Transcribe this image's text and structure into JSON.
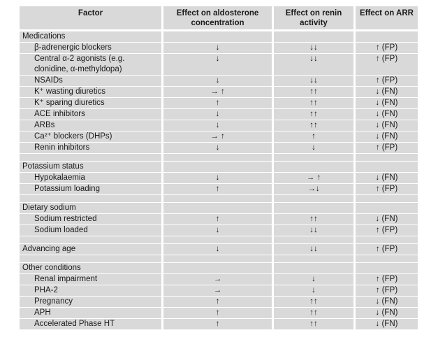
{
  "table": {
    "headers": [
      "Factor",
      "Effect on aldosterone concentration",
      "Effect on renin activity",
      "Effect on ARR"
    ],
    "rows": [
      {
        "type": "section",
        "factor": "Medications",
        "aldosterone": "",
        "renin": "",
        "arr": ""
      },
      {
        "type": "item",
        "factor": "β-adrenergic blockers",
        "aldosterone": "↓",
        "renin": "↓↓",
        "arr": "↑ (FP)"
      },
      {
        "type": "item",
        "factor": "Central α-2 agonists (e.g. clonidine, α-methyldopa)",
        "aldosterone": "↓",
        "renin": "↓↓",
        "arr": "↑ (FP)"
      },
      {
        "type": "item",
        "factor": "NSAIDs",
        "aldosterone": "↓",
        "renin": "↓↓",
        "arr": "↑ (FP)"
      },
      {
        "type": "item",
        "factor": "K⁺ wasting diuretics",
        "aldosterone": "→ ↑",
        "renin": "↑↑",
        "arr": "↓ (FN)"
      },
      {
        "type": "item",
        "factor": "K⁺ sparing diuretics",
        "aldosterone": "↑",
        "renin": "↑↑",
        "arr": "↓ (FN)"
      },
      {
        "type": "item",
        "factor": "ACE inhibitors",
        "aldosterone": "↓",
        "renin": "↑↑",
        "arr": "↓ (FN)"
      },
      {
        "type": "item",
        "factor": "ARBs",
        "aldosterone": "↓",
        "renin": "↑↑",
        "arr": "↓ (FN)"
      },
      {
        "type": "item",
        "factor": "Ca²⁺ blockers (DHPs)",
        "aldosterone": "→ ↑",
        "renin": "↑",
        "arr": "↓ (FN)"
      },
      {
        "type": "item",
        "factor": "Renin inhibitors",
        "aldosterone": "↓",
        "renin": "↓",
        "arr": "↑ (FP)"
      },
      {
        "type": "spacer"
      },
      {
        "type": "section",
        "factor": "Potassium status",
        "aldosterone": "",
        "renin": "",
        "arr": ""
      },
      {
        "type": "item",
        "factor": "Hypokalaemia",
        "aldosterone": "↓",
        "renin": "→ ↑",
        "arr": "↓ (FN)"
      },
      {
        "type": "item",
        "factor": "Potassium loading",
        "aldosterone": "↑",
        "renin": "→↓",
        "arr": "↑ (FP)"
      },
      {
        "type": "spacer"
      },
      {
        "type": "section",
        "factor": "Dietary sodium",
        "aldosterone": "",
        "renin": "",
        "arr": ""
      },
      {
        "type": "item",
        "factor": "Sodium restricted",
        "aldosterone": "↑",
        "renin": "↑↑",
        "arr": "↓ (FN)"
      },
      {
        "type": "item",
        "factor": "Sodium loaded",
        "aldosterone": "↓",
        "renin": "↓↓",
        "arr": "↑ (FP)"
      },
      {
        "type": "spacer"
      },
      {
        "type": "section",
        "factor": "Advancing age",
        "aldosterone": "↓",
        "renin": "↓↓",
        "arr": "↑ (FP)"
      },
      {
        "type": "spacer"
      },
      {
        "type": "section",
        "factor": "Other conditions",
        "aldosterone": "",
        "renin": "",
        "arr": ""
      },
      {
        "type": "item",
        "factor": "Renal impairment",
        "aldosterone": "→",
        "renin": "↓",
        "arr": "↑ (FP)"
      },
      {
        "type": "item",
        "factor": "PHA-2",
        "aldosterone": "→",
        "renin": "↓",
        "arr": "↑ (FP)"
      },
      {
        "type": "item",
        "factor": "Pregnancy",
        "aldosterone": "↑",
        "renin": "↑↑",
        "arr": "↓ (FN)"
      },
      {
        "type": "item",
        "factor": "APH",
        "aldosterone": "↑",
        "renin": "↑↑",
        "arr": "↓ (FN)"
      },
      {
        "type": "item",
        "factor": "Accelerated Phase HT",
        "aldosterone": "↑",
        "renin": "↑↑",
        "arr": "↓ (FN)"
      }
    ],
    "colors": {
      "row_background": "#d9d9d9",
      "separator": "#ffffff",
      "text": "#1a1a1a"
    }
  }
}
